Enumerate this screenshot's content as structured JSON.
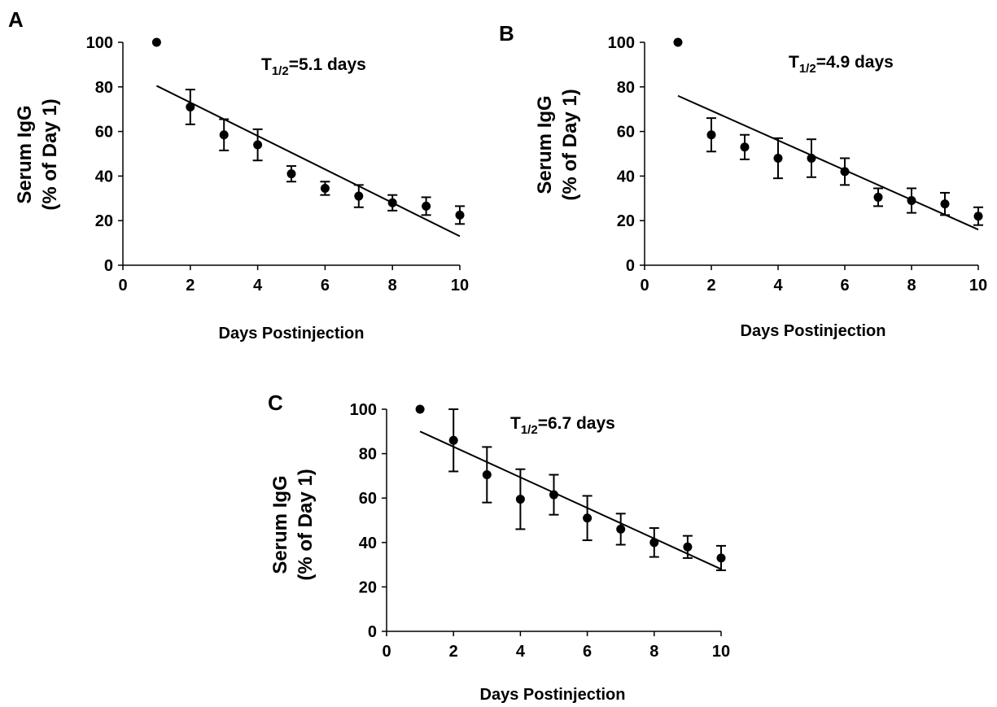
{
  "chart_data": [
    {
      "panel": "A",
      "type": "scatter",
      "annotation": {
        "prefix": "T",
        "subscript": "1/2",
        "text": "=5.1 days"
      },
      "xlabel": "Days Postinjection",
      "ylabel_lines": [
        "Serum IgG",
        "(% of Day 1)"
      ],
      "xlim": [
        0,
        10
      ],
      "ylim": [
        0,
        100
      ],
      "xticks": [
        0,
        2,
        4,
        6,
        8,
        10
      ],
      "yticks": [
        0,
        20,
        40,
        60,
        80,
        100
      ],
      "points": [
        {
          "x": 1,
          "y": 100,
          "err": 0
        },
        {
          "x": 2,
          "y": 71,
          "err": 7.8
        },
        {
          "x": 3,
          "y": 58.5,
          "err": 7
        },
        {
          "x": 4,
          "y": 54,
          "err": 7
        },
        {
          "x": 5,
          "y": 41,
          "err": 3.5
        },
        {
          "x": 6,
          "y": 34.5,
          "err": 3
        },
        {
          "x": 7,
          "y": 31,
          "err": 5
        },
        {
          "x": 8,
          "y": 28,
          "err": 3.5
        },
        {
          "x": 9,
          "y": 26.5,
          "err": 4
        },
        {
          "x": 10,
          "y": 22.5,
          "err": 4
        }
      ],
      "fit_line": [
        {
          "x": 1,
          "y": 80.5
        },
        {
          "x": 10,
          "y": 13
        }
      ],
      "grid": false
    },
    {
      "panel": "B",
      "type": "scatter",
      "annotation": {
        "prefix": "T",
        "subscript": "1/2",
        "text": "=4.9 days"
      },
      "xlabel": "Days Postinjection",
      "ylabel_lines": [
        "Serum IgG",
        "(% of Day 1)"
      ],
      "xlim": [
        0,
        10
      ],
      "ylim": [
        0,
        100
      ],
      "xticks": [
        0,
        2,
        4,
        6,
        8,
        10
      ],
      "yticks": [
        0,
        20,
        40,
        60,
        80,
        100
      ],
      "points": [
        {
          "x": 1,
          "y": 100,
          "err": 0
        },
        {
          "x": 2,
          "y": 58.5,
          "err": 7.5
        },
        {
          "x": 3,
          "y": 53,
          "err": 5.5
        },
        {
          "x": 4,
          "y": 48,
          "err": 9
        },
        {
          "x": 5,
          "y": 48,
          "err": 8.5
        },
        {
          "x": 6,
          "y": 42,
          "err": 6
        },
        {
          "x": 7,
          "y": 30.5,
          "err": 4
        },
        {
          "x": 8,
          "y": 29,
          "err": 5.5
        },
        {
          "x": 9,
          "y": 27.5,
          "err": 5
        },
        {
          "x": 10,
          "y": 22,
          "err": 4
        }
      ],
      "fit_line": [
        {
          "x": 1,
          "y": 76
        },
        {
          "x": 10,
          "y": 16
        }
      ],
      "grid": false
    },
    {
      "panel": "C",
      "type": "scatter",
      "annotation": {
        "prefix": "T",
        "subscript": "1/2",
        "text": "=6.7 days"
      },
      "xlabel": "Days Postinjection",
      "ylabel_lines": [
        "Serum IgG",
        "(% of Day 1)"
      ],
      "xlim": [
        0,
        10
      ],
      "ylim": [
        0,
        100
      ],
      "xticks": [
        0,
        2,
        4,
        6,
        8,
        10
      ],
      "yticks": [
        0,
        20,
        40,
        60,
        80,
        100
      ],
      "points": [
        {
          "x": 1,
          "y": 100,
          "err": 0
        },
        {
          "x": 2,
          "y": 86,
          "err": 14
        },
        {
          "x": 3,
          "y": 70.5,
          "err": 12.5
        },
        {
          "x": 4,
          "y": 59.5,
          "err": 13.5
        },
        {
          "x": 5,
          "y": 61.5,
          "err": 9
        },
        {
          "x": 6,
          "y": 51,
          "err": 10
        },
        {
          "x": 7,
          "y": 46,
          "err": 7
        },
        {
          "x": 8,
          "y": 40,
          "err": 6.5
        },
        {
          "x": 9,
          "y": 38,
          "err": 5
        },
        {
          "x": 10,
          "y": 33,
          "err": 5.5
        }
      ],
      "fit_line": [
        {
          "x": 1,
          "y": 90
        },
        {
          "x": 10,
          "y": 28
        }
      ],
      "grid": false
    }
  ]
}
